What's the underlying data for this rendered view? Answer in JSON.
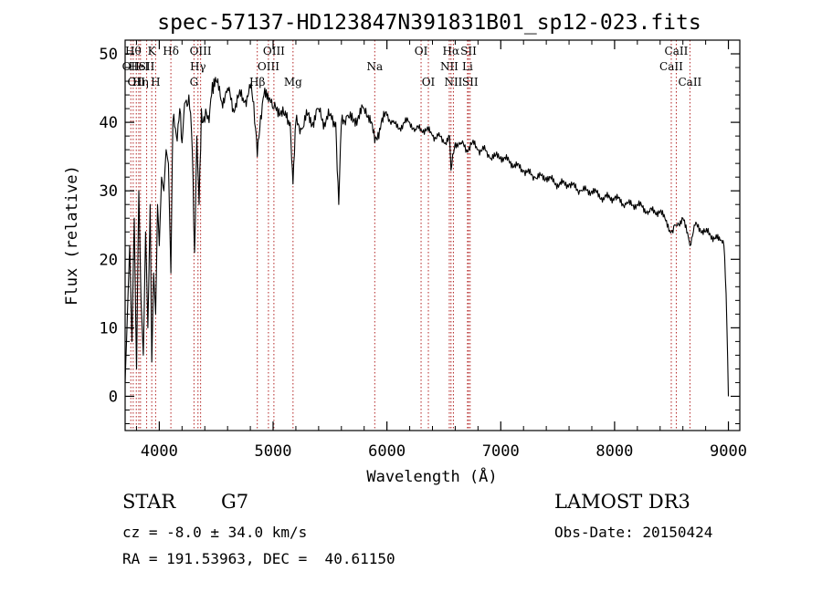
{
  "chart_data": {
    "type": "line",
    "title": "spec-57137-HD123847N391831B01_sp12-023.fits",
    "xlabel": "Wavelength (Å)",
    "ylabel": "Flux (relative)",
    "xlim": [
      3700,
      9100
    ],
    "ylim": [
      -5,
      52
    ],
    "xticks": [
      4000,
      5000,
      6000,
      7000,
      8000,
      9000
    ],
    "yticks": [
      0,
      10,
      20,
      30,
      40,
      50
    ],
    "grid": false,
    "series": [
      {
        "name": "spectrum",
        "x": [
          3700,
          3720,
          3740,
          3760,
          3780,
          3800,
          3820,
          3840,
          3860,
          3880,
          3900,
          3920,
          3934,
          3950,
          3968,
          3985,
          4000,
          4020,
          4040,
          4060,
          4080,
          4102,
          4120,
          4150,
          4180,
          4200,
          4230,
          4260,
          4290,
          4310,
          4330,
          4350,
          4370,
          4400,
          4430,
          4460,
          4500,
          4550,
          4600,
          4650,
          4700,
          4750,
          4800,
          4830,
          4861,
          4890,
          4920,
          4960,
          5000,
          5050,
          5100,
          5150,
          5175,
          5200,
          5250,
          5300,
          5350,
          5400,
          5450,
          5500,
          5550,
          5577,
          5600,
          5650,
          5700,
          5750,
          5800,
          5850,
          5893,
          5950,
          6000,
          6050,
          6100,
          6150,
          6200,
          6250,
          6300,
          6350,
          6400,
          6450,
          6500,
          6550,
          6563,
          6600,
          6650,
          6700,
          6750,
          6800,
          6850,
          6900,
          6950,
          7000,
          7100,
          7200,
          7300,
          7400,
          7500,
          7600,
          7700,
          7800,
          7900,
          8000,
          8100,
          8200,
          8300,
          8400,
          8498,
          8542,
          8600,
          8662,
          8700,
          8800,
          8900,
          8960,
          8980,
          9000
        ],
        "y": [
          2,
          12,
          22,
          8,
          26,
          4,
          30,
          14,
          6,
          24,
          10,
          28,
          5,
          18,
          12,
          28,
          22,
          32,
          30,
          36,
          34,
          18,
          40,
          38,
          42,
          37,
          43,
          44,
          36,
          21,
          38,
          28,
          42,
          40,
          41,
          44,
          46,
          43,
          45,
          42,
          44,
          43,
          45,
          43,
          35,
          41,
          44,
          43,
          42,
          42,
          41,
          40,
          31,
          40,
          39,
          41,
          40,
          42,
          40,
          41,
          40,
          28,
          40,
          41,
          40,
          41,
          42,
          41,
          37,
          40,
          41,
          40,
          39,
          40,
          40,
          39,
          39,
          39,
          38,
          38,
          37,
          38,
          33,
          37,
          37,
          36,
          37,
          36,
          36,
          35,
          35,
          35,
          34,
          33,
          32,
          32,
          31,
          31,
          30,
          30,
          29,
          29,
          28,
          28,
          27,
          27,
          24,
          25,
          26,
          22,
          25,
          24,
          23,
          22,
          15,
          0
        ]
      }
    ],
    "lines": [
      {
        "wl": 3750,
        "label": "OII",
        "row": 2
      },
      {
        "wl": 3771,
        "label": "Hθ",
        "row": 1
      },
      {
        "wl": 3798,
        "label": "OII",
        "row": 3
      },
      {
        "wl": 3820,
        "label": "HeI",
        "row": 2
      },
      {
        "wl": 3835,
        "label": "Hη",
        "row": 3
      },
      {
        "wl": 3889,
        "label": "SII",
        "row": 2
      },
      {
        "wl": 3934,
        "label": "K",
        "row": 1
      },
      {
        "wl": 3968,
        "label": "H",
        "row": 3
      },
      {
        "wl": 4102,
        "label": "Hδ",
        "row": 1
      },
      {
        "wl": 4305,
        "label": "G",
        "row": 3
      },
      {
        "wl": 4340,
        "label": "Hγ",
        "row": 2
      },
      {
        "wl": 4363,
        "label": "OIII",
        "row": 1
      },
      {
        "wl": 4861,
        "label": "Hβ",
        "row": 3
      },
      {
        "wl": 4959,
        "label": "OIII",
        "row": 2
      },
      {
        "wl": 5007,
        "label": "OIII",
        "row": 1
      },
      {
        "wl": 5175,
        "label": "Mg",
        "row": 3
      },
      {
        "wl": 5893,
        "label": "Na",
        "row": 2
      },
      {
        "wl": 6300,
        "label": "OI",
        "row": 1
      },
      {
        "wl": 6364,
        "label": "OI",
        "row": 3
      },
      {
        "wl": 6548,
        "label": "NII",
        "row": 2
      },
      {
        "wl": 6563,
        "label": "Hα",
        "row": 1
      },
      {
        "wl": 6584,
        "label": "NII",
        "row": 3
      },
      {
        "wl": 6708,
        "label": "Li",
        "row": 2
      },
      {
        "wl": 6717,
        "label": "SII",
        "row": 1
      },
      {
        "wl": 6731,
        "label": "SII",
        "row": 3
      },
      {
        "wl": 8498,
        "label": "CaII",
        "row": 2
      },
      {
        "wl": 8542,
        "label": "CaII",
        "row": 1
      },
      {
        "wl": 8662,
        "label": "CaII",
        "row": 3
      }
    ]
  },
  "info": {
    "object_class": "STAR",
    "subclass": "G7",
    "survey": "LAMOST DR3",
    "redshift": "cz = -8.0 ± 34.0 km/s",
    "obs_date": "Obs-Date: 20150424",
    "coords": "RA = 191.53963, DEC =  40.61150"
  },
  "colors": {
    "axis": "#000000",
    "spectrum": "#000000",
    "line_marker": "#b22222"
  }
}
